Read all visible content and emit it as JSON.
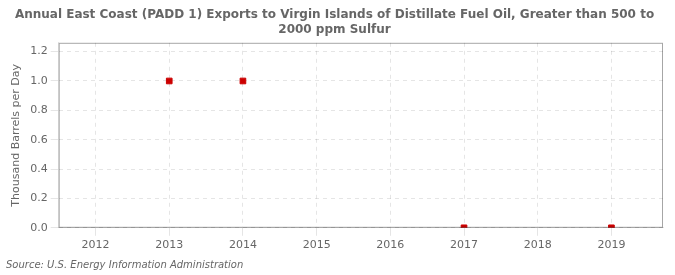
{
  "chart_data": {
    "type": "scatter",
    "title": "Annual East Coast (PADD 1) Exports to Virgin Islands of Distillate Fuel Oil, Greater than 500 to\n2000 ppm Sulfur",
    "ylabel": "Thousand Barrels per Day",
    "source": "Source: U.S. Energy Information Administration",
    "x": [
      2013,
      2014,
      2017,
      2019
    ],
    "values": [
      1.0,
      1.0,
      0.0,
      0.0
    ],
    "color": "#cc0000",
    "marker": "square",
    "xlim": [
      2011.5,
      2019.7
    ],
    "ylim": [
      0.0,
      1.26
    ],
    "xticks": [
      2012,
      2013,
      2014,
      2015,
      2016,
      2017,
      2018,
      2019
    ],
    "yticks": [
      {
        "value": 0.0,
        "label": "0.0"
      },
      0.2,
      0.4,
      0.6,
      0.8,
      {
        "value": 1.0,
        "label": "1.0"
      },
      1.2
    ],
    "grid": true
  }
}
